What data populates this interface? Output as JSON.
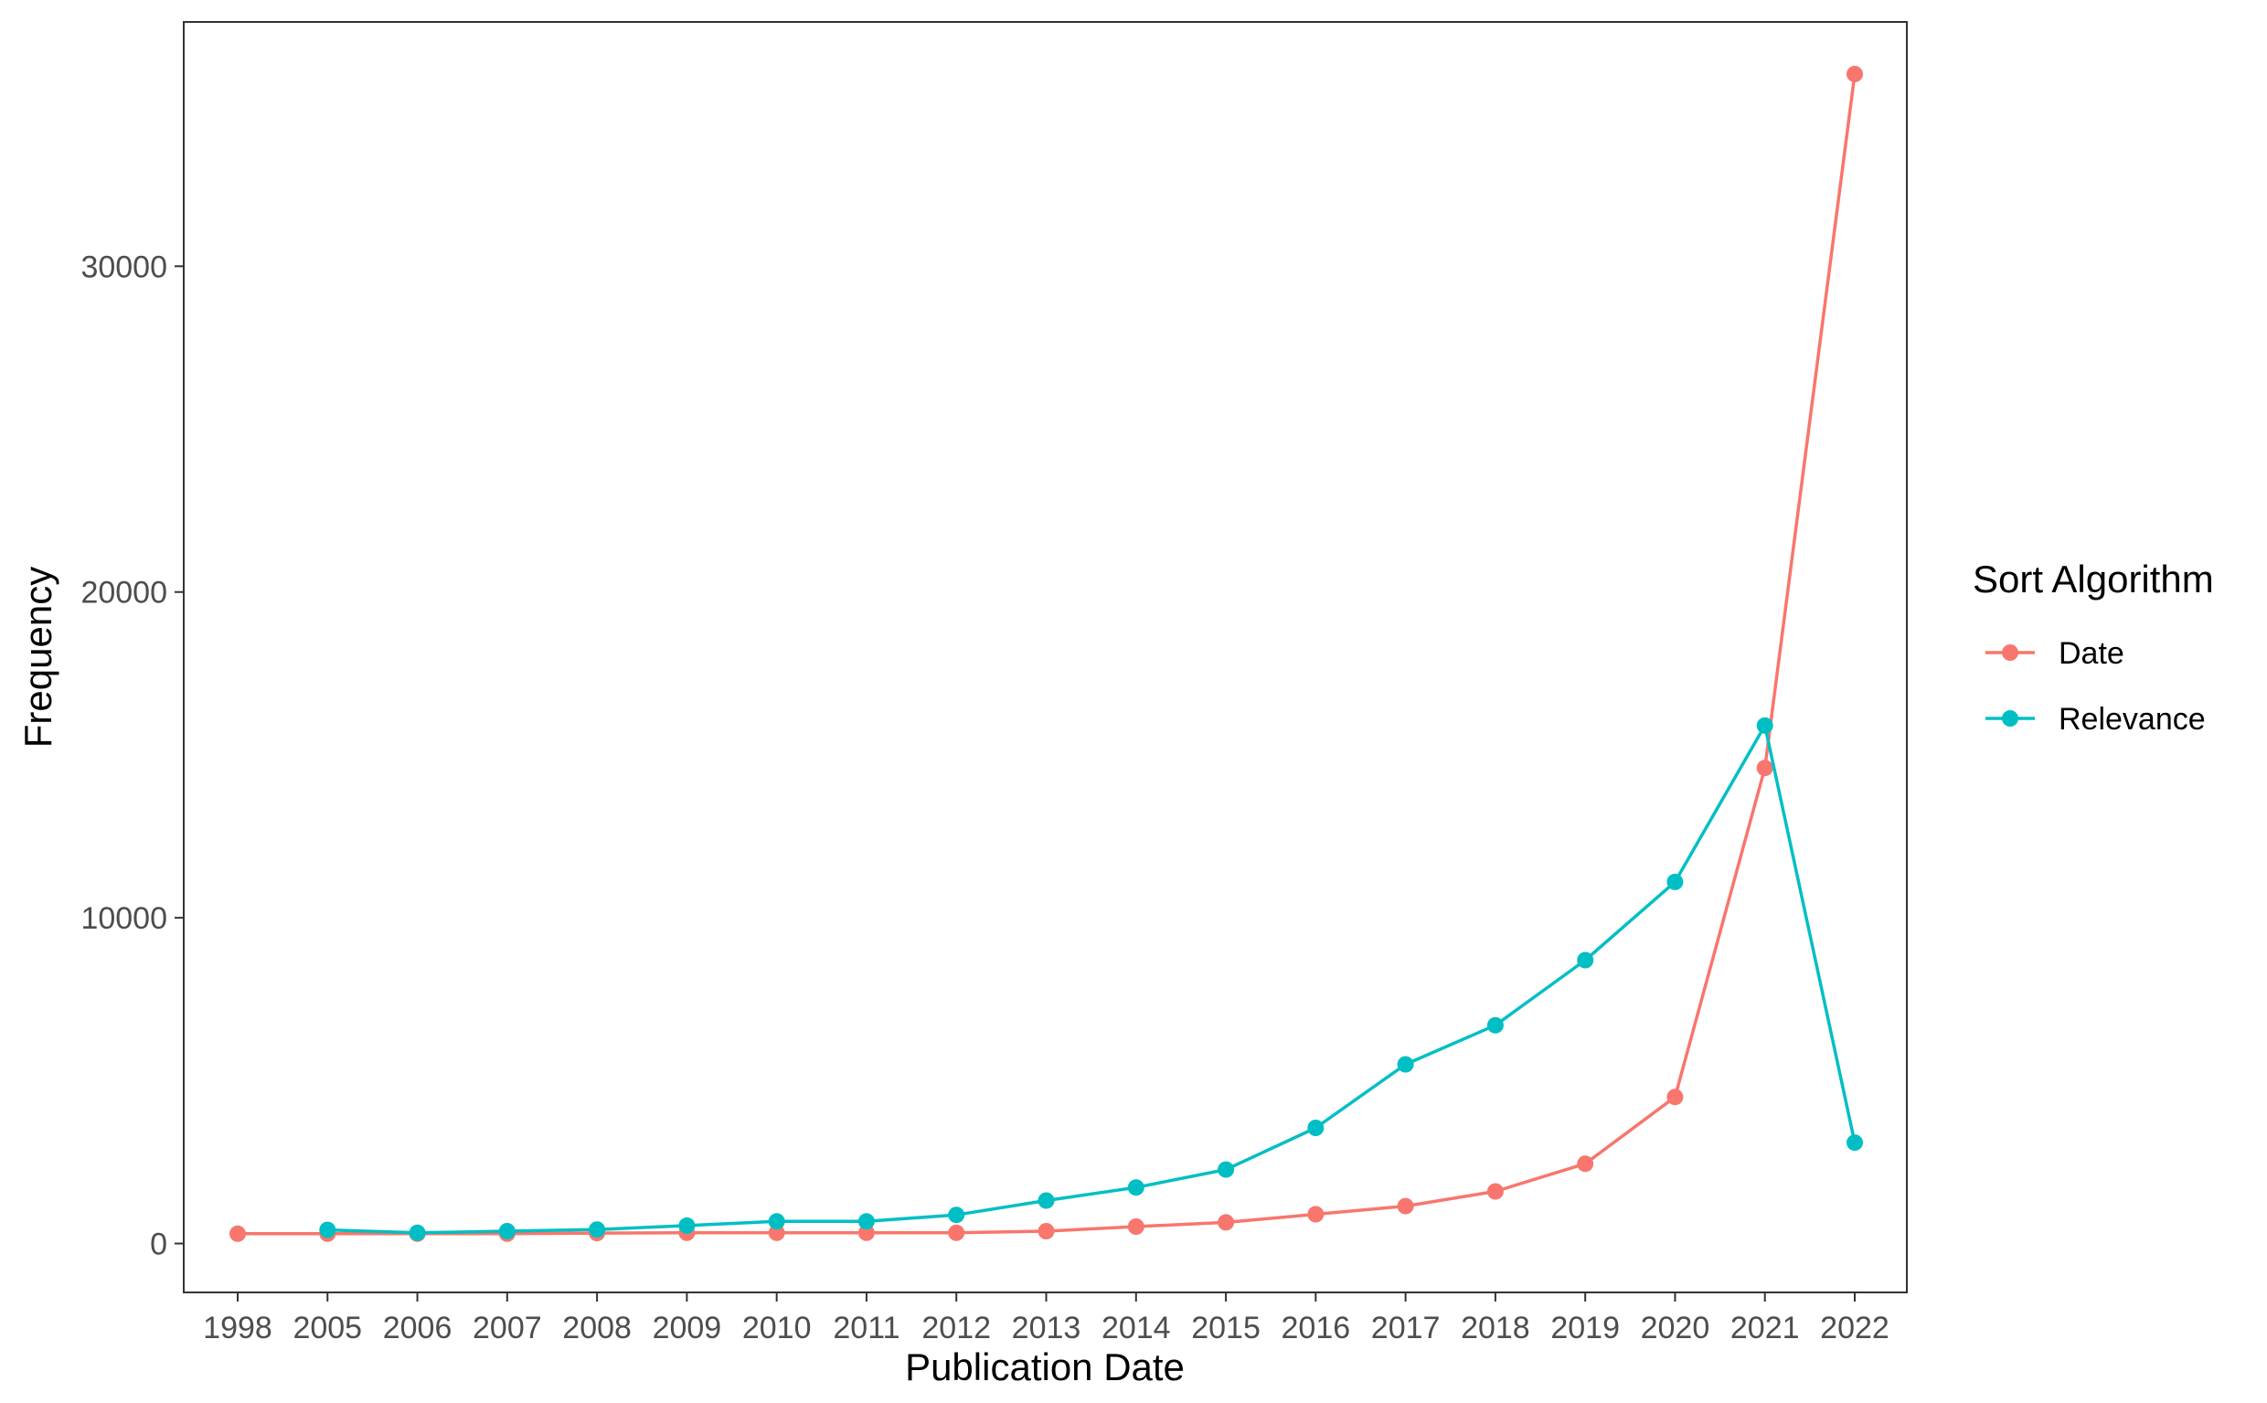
{
  "chart_data": {
    "type": "line",
    "xlabel": "Publication Date",
    "ylabel": "Frequency",
    "categories": [
      "1998",
      "2005",
      "2006",
      "2007",
      "2008",
      "2009",
      "2010",
      "2011",
      "2012",
      "2013",
      "2014",
      "2015",
      "2016",
      "2017",
      "2018",
      "2019",
      "2020",
      "2021",
      "2022"
    ],
    "ylim": [
      -1500,
      37500
    ],
    "yticks": [
      "0",
      "10000",
      "20000",
      "30000"
    ],
    "grid": false,
    "legend": {
      "title": "Sort Algorithm",
      "placement": "right"
    },
    "series": [
      {
        "name": "Date",
        "color": "#F8766D",
        "values": [
          300,
          300,
          300,
          300,
          320,
          330,
          330,
          330,
          330,
          380,
          520,
          650,
          900,
          1150,
          1600,
          2450,
          4500,
          14600,
          35900
        ]
      },
      {
        "name": "Relevance",
        "color": "#00BFC4",
        "values": [
          null,
          420,
          330,
          380,
          430,
          550,
          680,
          680,
          880,
          1320,
          1720,
          2270,
          3550,
          5500,
          6700,
          8700,
          11100,
          15900,
          3100
        ]
      }
    ]
  }
}
